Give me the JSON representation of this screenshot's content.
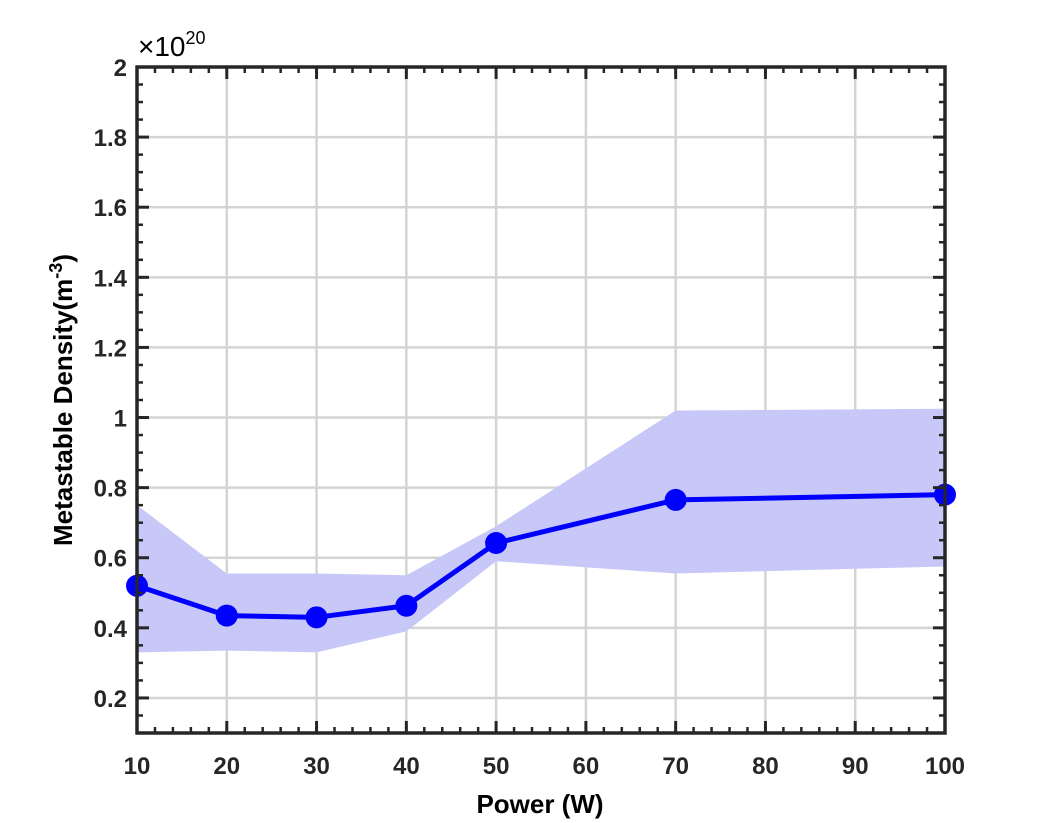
{
  "chart_data": {
    "type": "line",
    "x": [
      10,
      20,
      30,
      40,
      50,
      70,
      100
    ],
    "x_ticks": [
      "10",
      "20",
      "30",
      "40",
      "50",
      "60",
      "70",
      "80",
      "90",
      "100"
    ],
    "y_ticks": [
      "0.2",
      "0.4",
      "0.6",
      "0.8",
      "1",
      "1.2",
      "1.4",
      "1.6",
      "1.8",
      "2"
    ],
    "series": [
      {
        "values": [
          0.52,
          0.435,
          0.43,
          0.463,
          0.642,
          0.765,
          0.78
        ],
        "band_upper": [
          0.75,
          0.555,
          0.555,
          0.55,
          0.69,
          1.02,
          1.025
        ],
        "band_lower": [
          0.33,
          0.335,
          0.33,
          0.39,
          0.59,
          0.555,
          0.575
        ],
        "color": "#0000ff",
        "band_color": "#c8c8f8"
      }
    ],
    "xlabel": "Power (W)",
    "ylabel": "Metastable Density(m",
    "ylabel_sup": "-3",
    "ylabel_close": ")",
    "y_exponent_prefix": "×10",
    "y_exponent": "20",
    "xlim": [
      10,
      100
    ],
    "ylim": [
      0.1,
      2
    ],
    "grid": true
  }
}
